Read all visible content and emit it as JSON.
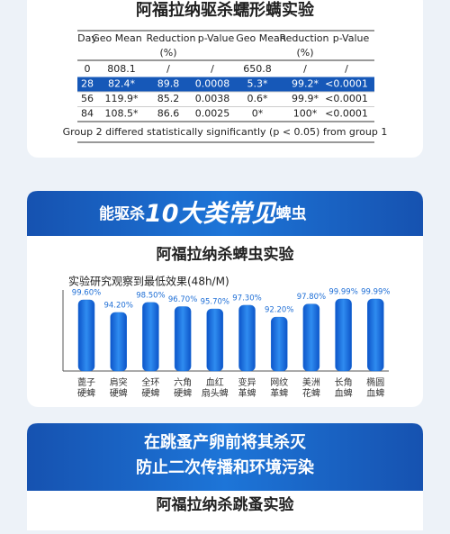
{
  "mite_section": {
    "title": "阿福拉纳驱杀蠕形螨实验",
    "table": {
      "header": [
        "Day",
        "Geo Mean",
        "Reduction",
        "p-Value",
        "Geo Mean",
        "Reduction",
        "p-Value"
      ],
      "units": [
        "(%)",
        "(%)"
      ],
      "rows": [
        [
          "0",
          "808.1",
          "/",
          "/",
          "650.8",
          "/",
          "/"
        ],
        [
          "28",
          "82.4*",
          "89.8",
          "0.0008",
          "5.3*",
          "99.2*",
          "<0.0001"
        ],
        [
          "56",
          "119.9*",
          "85.2",
          "0.0038",
          "0.6*",
          "99.9*",
          "<0.0001"
        ],
        [
          "84",
          "108.5*",
          "86.6",
          "0.0025",
          "0*",
          "100*",
          "<0.0001"
        ]
      ],
      "highlight_row": 1,
      "footnote": "Group 2 differed statistically significantly (p < 0.05) from group 1"
    }
  },
  "tick_banner": {
    "prefix": "能驱杀",
    "emphasis": "10大类常见",
    "suffix": "蜱虫"
  },
  "chart_data": {
    "type": "bar",
    "title": "阿福拉纳杀蜱虫实验",
    "subtitle": "实验研究观察到最低效果(48h/M)",
    "categories": [
      [
        "蓖子",
        "硬蜱"
      ],
      [
        "肩突",
        "硬蜱"
      ],
      [
        "全环",
        "硬蜱"
      ],
      [
        "六角",
        "硬蜱"
      ],
      [
        "血红",
        "扇头蜱"
      ],
      [
        "变异",
        "革蜱"
      ],
      [
        "网纹",
        "革蜱"
      ],
      [
        "美洲",
        "花蜱"
      ],
      [
        "长角",
        "血蜱"
      ],
      [
        "椭圆",
        "血蜱"
      ]
    ],
    "values": [
      99.6,
      94.2,
      98.5,
      96.7,
      95.7,
      97.3,
      92.2,
      97.8,
      99.99,
      99.99
    ],
    "value_labels": [
      "99.60%",
      "94.20%",
      "98.50%",
      "96.70%",
      "95.70%",
      "97.30%",
      "92.20%",
      "97.80%",
      "99.99%",
      "99.99%"
    ],
    "color": "#1f6fd6",
    "ylim": [
      69,
      100
    ]
  },
  "flea_banner": {
    "lines": [
      "在跳蚤产卵前将其杀灭",
      "防止二次传播和环境污染"
    ]
  },
  "flea_section": {
    "title": "阿福拉纳杀跳蚤实验"
  }
}
